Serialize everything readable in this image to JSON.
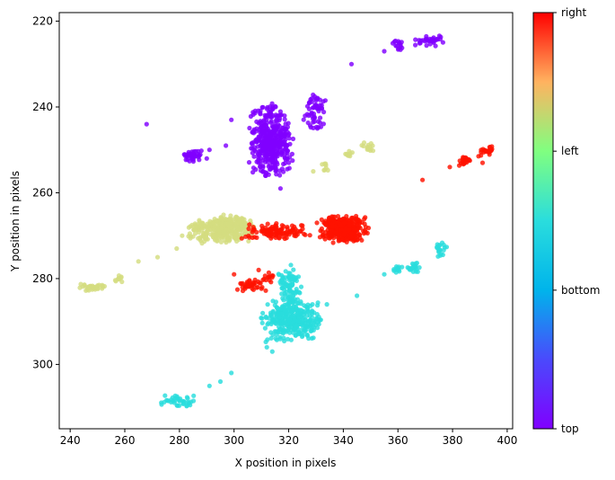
{
  "chart_data": {
    "type": "scatter",
    "xlabel": "X position in pixels",
    "ylabel": "Y position in pixels",
    "xlim": [
      236,
      402
    ],
    "ylim": [
      315,
      218
    ],
    "y_inverted": true,
    "xticks": [
      240,
      260,
      280,
      300,
      320,
      340,
      360,
      380,
      400
    ],
    "yticks": [
      220,
      240,
      260,
      280,
      300
    ],
    "grid": false,
    "colormap": "rainbow",
    "colorbar": {
      "ticks": [
        {
          "label": "top",
          "value": 0
        },
        {
          "label": "bottom",
          "value": 0.333
        },
        {
          "label": "left",
          "value": 0.667
        },
        {
          "label": "right",
          "value": 1
        }
      ]
    },
    "series": [
      {
        "category": "top",
        "color": "#8000ff",
        "clusters": [
          {
            "x": [
              305,
              322
            ],
            "y": [
              239,
              257
            ],
            "n": 420
          },
          {
            "x": [
              325,
              334
            ],
            "y": [
              236,
              246
            ],
            "n": 60
          },
          {
            "x": [
              280,
              289
            ],
            "y": [
              250,
              253
            ],
            "n": 40
          },
          {
            "x": [
              358,
              362
            ],
            "y": [
              224,
              227
            ],
            "n": 15
          },
          {
            "x": [
              366,
              377
            ],
            "y": [
              223,
              226
            ],
            "n": 35
          }
        ],
        "points": [
          [
            299,
            243
          ],
          [
            297,
            249
          ],
          [
            268,
            244
          ],
          [
            343,
            230
          ],
          [
            355,
            227
          ],
          [
            317,
            259
          ],
          [
            291,
            250
          ],
          [
            290,
            252
          ]
        ]
      },
      {
        "category": "bottom",
        "color": "#2adddd",
        "clusters": [
          {
            "x": [
              309,
              333
            ],
            "y": [
              284,
              295
            ],
            "n": 320
          },
          {
            "x": [
              316,
              325
            ],
            "y": [
              276,
              288
            ],
            "n": 90
          },
          {
            "x": [
              272,
              287
            ],
            "y": [
              307,
              310
            ],
            "n": 40
          },
          {
            "x": [
              358,
              362
            ],
            "y": [
              277,
              279
            ],
            "n": 12
          },
          {
            "x": [
              363,
              368
            ],
            "y": [
              276,
              279
            ],
            "n": 20
          },
          {
            "x": [
              373,
              378
            ],
            "y": [
              271,
              276
            ],
            "n": 20
          }
        ],
        "points": [
          [
            291,
            305
          ],
          [
            295,
            304
          ],
          [
            299,
            302
          ],
          [
            345,
            284
          ],
          [
            355,
            279
          ],
          [
            314,
            297
          ],
          [
            334,
            286
          ],
          [
            312,
            296
          ]
        ]
      },
      {
        "category": "left",
        "color": "#d4dd80",
        "clusters": [
          {
            "x": [
              283,
              309
            ],
            "y": [
              265,
              272
            ],
            "n": 340
          },
          {
            "x": [
              243,
              253
            ],
            "y": [
              281,
              283
            ],
            "n": 40
          },
          {
            "x": [
              256,
              259
            ],
            "y": [
              279,
              281
            ],
            "n": 10
          },
          {
            "x": [
              340,
              344
            ],
            "y": [
              250,
              252
            ],
            "n": 10
          },
          {
            "x": [
              346,
              352
            ],
            "y": [
              248,
              251
            ],
            "n": 14
          },
          {
            "x": [
              332,
              335
            ],
            "y": [
              253,
              255
            ],
            "n": 8
          }
        ],
        "points": [
          [
            265,
            276
          ],
          [
            272,
            275
          ],
          [
            279,
            273
          ],
          [
            281,
            270
          ],
          [
            329,
            255
          ],
          [
            258,
            280
          ]
        ]
      },
      {
        "category": "right",
        "color": "#ff1200",
        "clusters": [
          {
            "x": [
              330,
              350
            ],
            "y": [
              265,
              272
            ],
            "n": 340
          },
          {
            "x": [
              301,
              328
            ],
            "y": [
              267,
              271
            ],
            "n": 120
          },
          {
            "x": [
              301,
              313
            ],
            "y": [
              280,
              283
            ],
            "n": 40
          },
          {
            "x": [
              310,
              315
            ],
            "y": [
              278,
              281
            ],
            "n": 12
          },
          {
            "x": [
              382,
              387
            ],
            "y": [
              251,
              254
            ],
            "n": 25
          },
          {
            "x": [
              389,
              395
            ],
            "y": [
              249,
              252
            ],
            "n": 25
          }
        ],
        "points": [
          [
            300,
            279
          ],
          [
            369,
            257
          ],
          [
            379,
            254
          ],
          [
            309,
            278
          ],
          [
            391,
            253
          ]
        ]
      }
    ]
  }
}
